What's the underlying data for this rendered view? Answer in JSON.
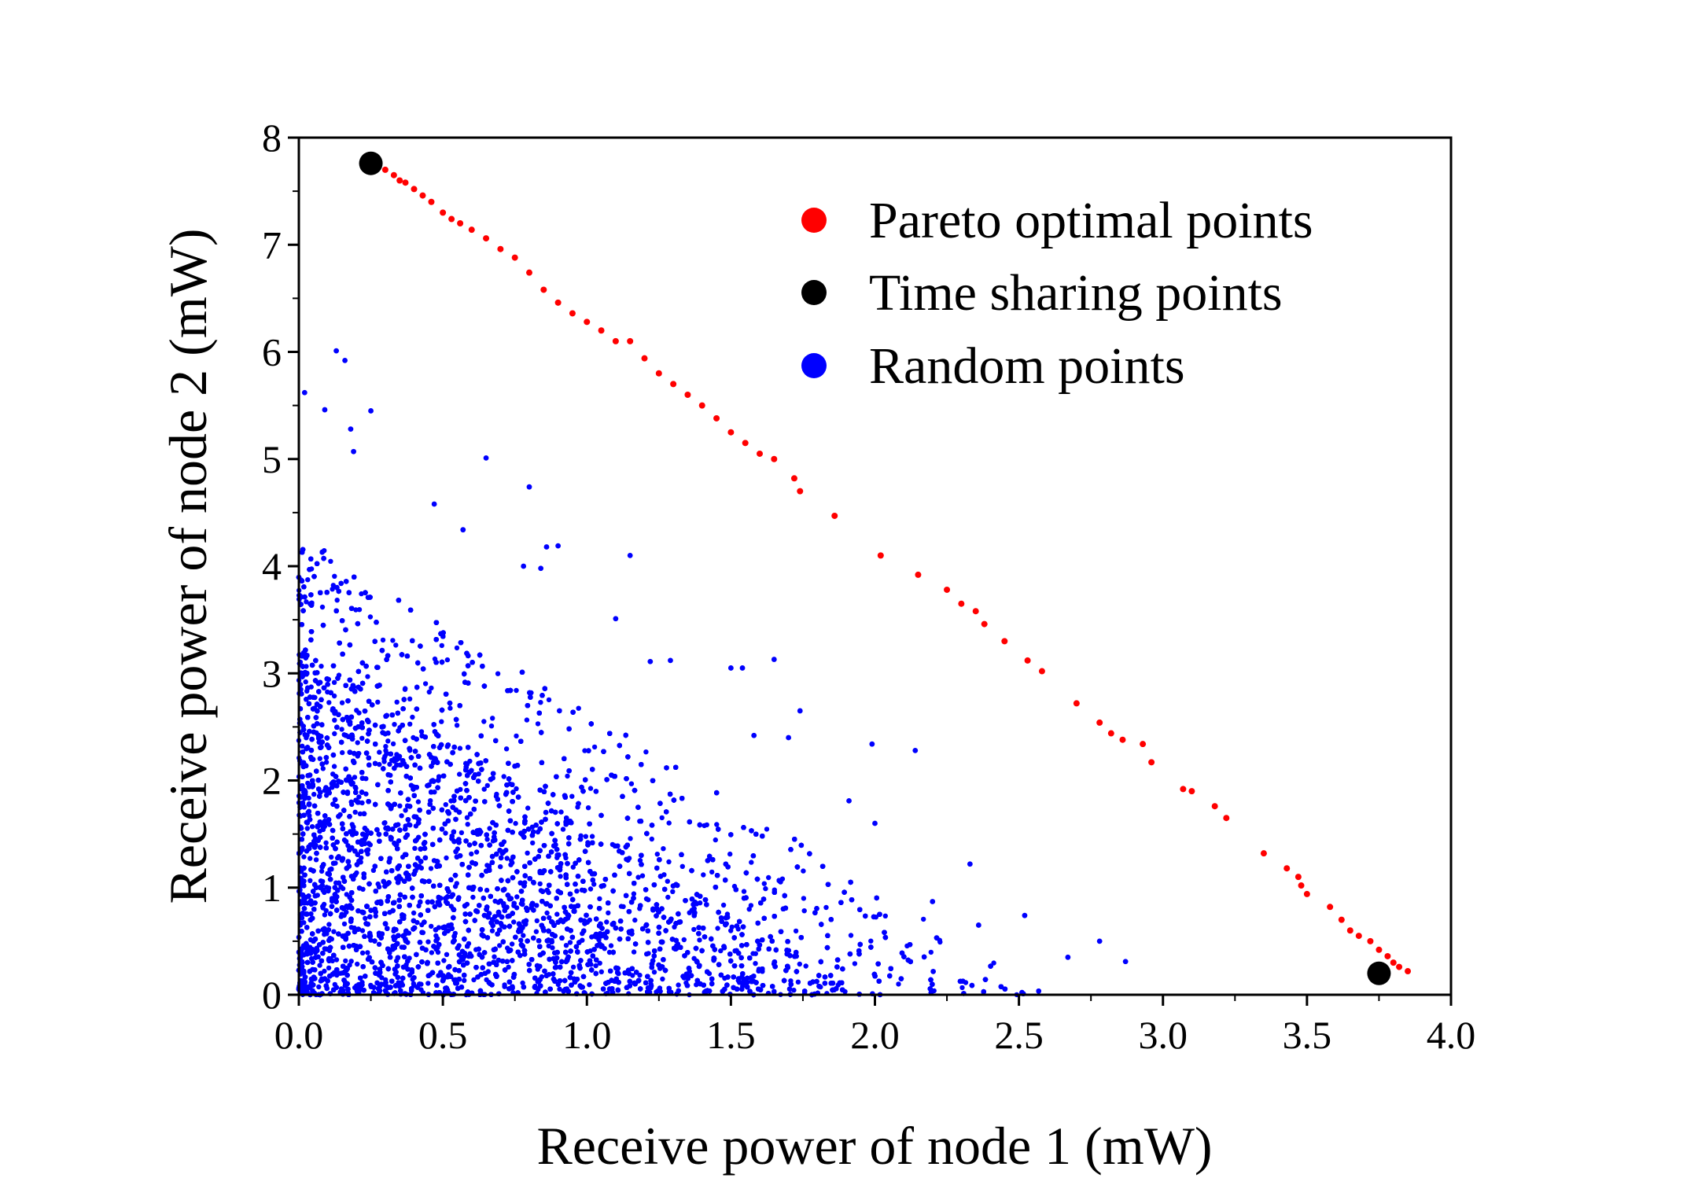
{
  "chart_data": {
    "type": "scatter",
    "xlabel": "Receive power of node 1 (mW)",
    "ylabel": "Receive power of node 2 (mW)",
    "xlim": [
      0.0,
      4.0
    ],
    "ylim": [
      0,
      8
    ],
    "x_ticks": [
      "0.0",
      "0.5",
      "1.0",
      "1.5",
      "2.0",
      "2.5",
      "3.0",
      "3.5",
      "4.0"
    ],
    "y_ticks": [
      "0",
      "1",
      "2",
      "3",
      "4",
      "5",
      "6",
      "7",
      "8"
    ],
    "grid": false,
    "legend_placement": "top-right",
    "series": [
      {
        "name": "Pareto optimal points",
        "color": "#ff0000",
        "points": [
          [
            0.27,
            7.72
          ],
          [
            0.3,
            7.7
          ],
          [
            0.33,
            7.65
          ],
          [
            0.35,
            7.6
          ],
          [
            0.37,
            7.58
          ],
          [
            0.4,
            7.52
          ],
          [
            0.43,
            7.46
          ],
          [
            0.46,
            7.4
          ],
          [
            0.5,
            7.3
          ],
          [
            0.53,
            7.24
          ],
          [
            0.56,
            7.2
          ],
          [
            0.6,
            7.14
          ],
          [
            0.65,
            7.06
          ],
          [
            0.7,
            6.96
          ],
          [
            0.75,
            6.88
          ],
          [
            0.8,
            6.74
          ],
          [
            0.85,
            6.58
          ],
          [
            0.9,
            6.46
          ],
          [
            0.95,
            6.36
          ],
          [
            1.0,
            6.28
          ],
          [
            1.05,
            6.2
          ],
          [
            1.1,
            6.1
          ],
          [
            1.15,
            6.1
          ],
          [
            1.2,
            5.94
          ],
          [
            1.25,
            5.8
          ],
          [
            1.3,
            5.7
          ],
          [
            1.35,
            5.6
          ],
          [
            1.4,
            5.5
          ],
          [
            1.45,
            5.38
          ],
          [
            1.5,
            5.25
          ],
          [
            1.55,
            5.15
          ],
          [
            1.6,
            5.05
          ],
          [
            1.65,
            5.0
          ],
          [
            1.72,
            4.82
          ],
          [
            1.74,
            4.7
          ],
          [
            1.86,
            4.47
          ],
          [
            2.02,
            4.1
          ],
          [
            2.15,
            3.92
          ],
          [
            2.25,
            3.78
          ],
          [
            2.3,
            3.65
          ],
          [
            2.35,
            3.58
          ],
          [
            2.38,
            3.46
          ],
          [
            2.45,
            3.3
          ],
          [
            2.53,
            3.12
          ],
          [
            2.58,
            3.02
          ],
          [
            2.7,
            2.72
          ],
          [
            2.78,
            2.54
          ],
          [
            2.82,
            2.44
          ],
          [
            2.86,
            2.38
          ],
          [
            2.93,
            2.34
          ],
          [
            2.96,
            2.17
          ],
          [
            3.07,
            1.92
          ],
          [
            3.1,
            1.9
          ],
          [
            3.18,
            1.76
          ],
          [
            3.22,
            1.65
          ],
          [
            3.35,
            1.32
          ],
          [
            3.43,
            1.18
          ],
          [
            3.47,
            1.1
          ],
          [
            3.48,
            1.02
          ],
          [
            3.5,
            0.94
          ],
          [
            3.58,
            0.82
          ],
          [
            3.62,
            0.7
          ],
          [
            3.65,
            0.6
          ],
          [
            3.68,
            0.55
          ],
          [
            3.72,
            0.5
          ],
          [
            3.75,
            0.42
          ],
          [
            3.78,
            0.36
          ],
          [
            3.8,
            0.3
          ],
          [
            3.82,
            0.26
          ],
          [
            3.85,
            0.22
          ]
        ]
      },
      {
        "name": "Time sharing points",
        "color": "#000000",
        "points": [
          [
            0.25,
            7.76
          ],
          [
            3.75,
            0.2
          ]
        ]
      },
      {
        "name": "Random points",
        "color": "#0000ff",
        "generator": {
          "count": 14000,
          "x_max": 2.6,
          "y_max": 6.0,
          "frontier": "x/2.6 + y/4.3 <= 1",
          "seed": 7
        },
        "outliers": [
          [
            0.02,
            5.62
          ],
          [
            0.13,
            6.01
          ],
          [
            0.16,
            5.92
          ],
          [
            0.09,
            5.46
          ],
          [
            0.25,
            5.45
          ],
          [
            0.18,
            5.28
          ],
          [
            0.19,
            5.07
          ],
          [
            0.65,
            5.01
          ],
          [
            0.8,
            4.74
          ],
          [
            0.47,
            4.58
          ],
          [
            0.57,
            4.34
          ],
          [
            0.9,
            4.19
          ],
          [
            0.86,
            4.18
          ],
          [
            1.15,
            4.1
          ],
          [
            0.78,
            4.0
          ],
          [
            0.84,
            3.98
          ],
          [
            1.1,
            3.51
          ],
          [
            1.22,
            3.11
          ],
          [
            1.29,
            3.12
          ],
          [
            1.5,
            3.05
          ],
          [
            1.54,
            3.05
          ],
          [
            1.65,
            3.13
          ],
          [
            1.74,
            2.65
          ],
          [
            1.58,
            2.42
          ],
          [
            1.7,
            2.4
          ],
          [
            1.99,
            2.34
          ],
          [
            2.14,
            2.28
          ],
          [
            1.91,
            1.81
          ],
          [
            2.0,
            1.6
          ],
          [
            2.33,
            1.22
          ],
          [
            2.52,
            0.74
          ],
          [
            2.67,
            0.35
          ],
          [
            2.78,
            0.5
          ],
          [
            2.87,
            0.31
          ],
          [
            2.2,
            0.87
          ],
          [
            2.36,
            0.65
          ]
        ]
      }
    ]
  }
}
